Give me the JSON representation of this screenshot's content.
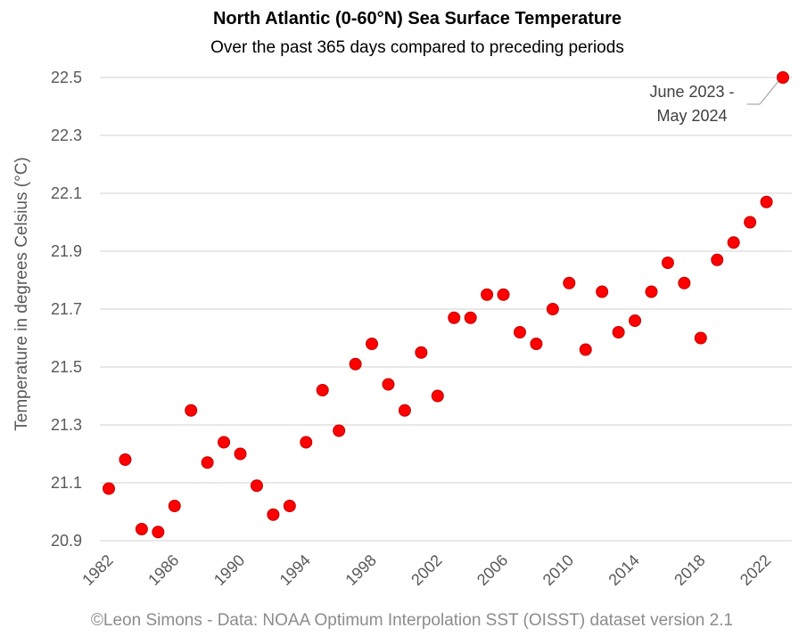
{
  "chart_data": {
    "type": "scatter",
    "title": "North Atlantic (0-60°N) Sea Surface Temperature",
    "subtitle": "Over the past 365 days compared to preceding periods",
    "ylabel": "Temperature in degrees Celsius (°C)",
    "xlabel": "",
    "source": "©Leon Simons - Data: NOAA Optimum Interpolation SST (OISST) dataset version 2.1",
    "xlim": [
      1982,
      2023
    ],
    "ylim": [
      20.9,
      22.5
    ],
    "y_ticks": [
      "20.9",
      "21.1",
      "21.3",
      "21.5",
      "21.7",
      "21.9",
      "22.1",
      "22.3",
      "22.5"
    ],
    "x_ticks": [
      "1982",
      "1986",
      "1990",
      "1994",
      "1998",
      "2002",
      "2006",
      "2010",
      "2014",
      "2018",
      "2022"
    ],
    "grid": true,
    "marker_color": "#ff0000",
    "marker_edge_color": "#c00000",
    "points": [
      {
        "x": 1982,
        "y": 21.08
      },
      {
        "x": 1983,
        "y": 21.18
      },
      {
        "x": 1984,
        "y": 20.94
      },
      {
        "x": 1985,
        "y": 20.93
      },
      {
        "x": 1986,
        "y": 21.02
      },
      {
        "x": 1987,
        "y": 21.35
      },
      {
        "x": 1988,
        "y": 21.17
      },
      {
        "x": 1989,
        "y": 21.24
      },
      {
        "x": 1990,
        "y": 21.2
      },
      {
        "x": 1991,
        "y": 21.09
      },
      {
        "x": 1992,
        "y": 20.99
      },
      {
        "x": 1993,
        "y": 21.02
      },
      {
        "x": 1994,
        "y": 21.24
      },
      {
        "x": 1995,
        "y": 21.42
      },
      {
        "x": 1996,
        "y": 21.28
      },
      {
        "x": 1997,
        "y": 21.51
      },
      {
        "x": 1998,
        "y": 21.58
      },
      {
        "x": 1999,
        "y": 21.44
      },
      {
        "x": 2000,
        "y": 21.35
      },
      {
        "x": 2001,
        "y": 21.55
      },
      {
        "x": 2002,
        "y": 21.4
      },
      {
        "x": 2003,
        "y": 21.67
      },
      {
        "x": 2004,
        "y": 21.67
      },
      {
        "x": 2005,
        "y": 21.75
      },
      {
        "x": 2006,
        "y": 21.75
      },
      {
        "x": 2007,
        "y": 21.62
      },
      {
        "x": 2008,
        "y": 21.58
      },
      {
        "x": 2009,
        "y": 21.7
      },
      {
        "x": 2010,
        "y": 21.79
      },
      {
        "x": 2011,
        "y": 21.56
      },
      {
        "x": 2012,
        "y": 21.76
      },
      {
        "x": 2013,
        "y": 21.62
      },
      {
        "x": 2014,
        "y": 21.66
      },
      {
        "x": 2015,
        "y": 21.76
      },
      {
        "x": 2016,
        "y": 21.86
      },
      {
        "x": 2017,
        "y": 21.79
      },
      {
        "x": 2018,
        "y": 21.6
      },
      {
        "x": 2019,
        "y": 21.87
      },
      {
        "x": 2020,
        "y": 21.93
      },
      {
        "x": 2021,
        "y": 22.0
      },
      {
        "x": 2022,
        "y": 22.07
      },
      {
        "x": 2023,
        "y": 22.5
      }
    ],
    "annotation": {
      "lines": [
        "June 2023 -",
        "May 2024"
      ],
      "x": 2023,
      "y": 22.5
    }
  }
}
